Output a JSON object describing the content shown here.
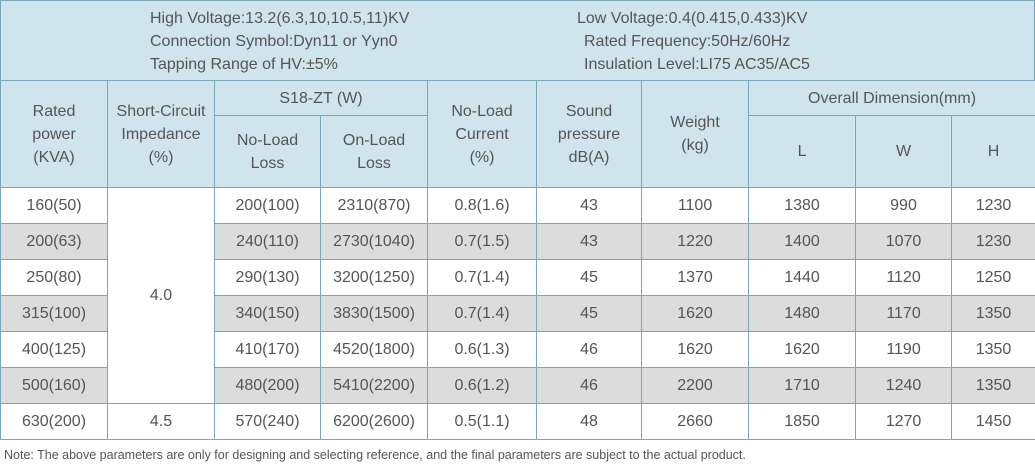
{
  "specs": {
    "high_voltage": "High Voltage:13.2(6.3,10,10.5,11)KV",
    "connection_symbol": "Connection Symbol:Dyn11 or Yyn0",
    "tapping_range": "Tapping Range of HV:±5%",
    "low_voltage": "Low Voltage:0.4(0.415,0.433)KV",
    "rated_frequency": "Rated Frequency:50Hz/60Hz",
    "insulation_level": "Insulation Level:LI75 AC35/AC5"
  },
  "table": {
    "headers": {
      "rated_power": [
        "Rated",
        "power",
        "(KVA)"
      ],
      "impedance": [
        "Short-Circuit",
        "Impedance",
        "(%)"
      ],
      "group": "S18-ZT (W)",
      "no_load_loss": [
        "No-Load",
        "Loss"
      ],
      "on_load_loss": [
        "On-Load",
        "Loss"
      ],
      "no_load_current": [
        "No-Load",
        "Current",
        "(%)"
      ],
      "sound": [
        "Sound",
        "pressure",
        "dB(A)"
      ],
      "weight": [
        "Weight",
        "(kg)"
      ],
      "dimension": "Overall Dimension(mm)",
      "l": "L",
      "w": "W",
      "h": "H"
    },
    "impedance_groups": [
      "4.0",
      "4.5"
    ],
    "rows": [
      {
        "power": "160(50)",
        "nll": "200(100)",
        "oll": "2310(870)",
        "current": "0.8(1.6)",
        "sound": "43",
        "weight": "1100",
        "l": "1380",
        "w": "990",
        "h": "1230"
      },
      {
        "power": "200(63)",
        "nll": "240(110)",
        "oll": "2730(1040)",
        "current": "0.7(1.5)",
        "sound": "43",
        "weight": "1220",
        "l": "1400",
        "w": "1070",
        "h": "1230"
      },
      {
        "power": "250(80)",
        "nll": "290(130)",
        "oll": "3200(1250)",
        "current": "0.7(1.4)",
        "sound": "45",
        "weight": "1370",
        "l": "1440",
        "w": "1120",
        "h": "1250"
      },
      {
        "power": "315(100)",
        "nll": "340(150)",
        "oll": "3830(1500)",
        "current": "0.7(1.4)",
        "sound": "45",
        "weight": "1620",
        "l": "1480",
        "w": "1170",
        "h": "1350"
      },
      {
        "power": "400(125)",
        "nll": "410(170)",
        "oll": "4520(1800)",
        "current": "0.6(1.3)",
        "sound": "46",
        "weight": "1620",
        "l": "1620",
        "w": "1190",
        "h": "1350"
      },
      {
        "power": "500(160)",
        "nll": "480(200)",
        "oll": "5410(2200)",
        "current": "0.6(1.2)",
        "sound": "46",
        "weight": "2200",
        "l": "1710",
        "w": "1240",
        "h": "1350"
      },
      {
        "power": "630(200)",
        "nll": "570(240)",
        "oll": "6200(2600)",
        "current": "0.5(1.1)",
        "sound": "48",
        "weight": "2660",
        "l": "1850",
        "w": "1270",
        "h": "1450"
      }
    ]
  },
  "note": "Note: The above parameters are only for designing and selecting  reference, and the final parameters are subject to the actual product.",
  "colors": {
    "header_bg": "#cfe4ec",
    "row_shade": "#dcdcdc",
    "border": "#7aa6b8",
    "text": "#555555"
  }
}
